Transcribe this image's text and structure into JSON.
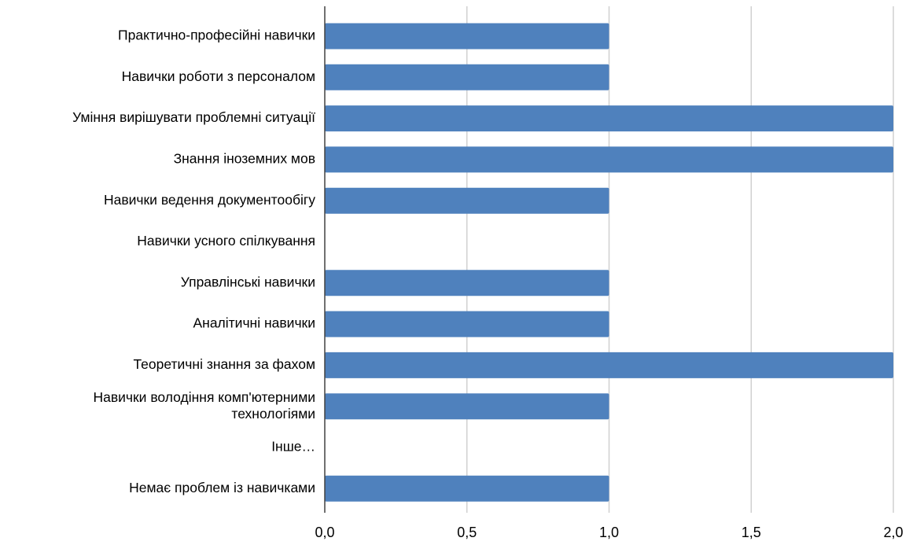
{
  "chart_data": {
    "type": "bar",
    "orientation": "horizontal",
    "categories": [
      [
        "Практично-професійні навички"
      ],
      [
        "Навички роботи з персоналом"
      ],
      [
        "Уміння вирішувати проблемні ситуації"
      ],
      [
        "Знання іноземних мов"
      ],
      [
        "Навички ведення документообігу"
      ],
      [
        "Навички усного спілкування"
      ],
      [
        "Управлінські навички"
      ],
      [
        "Аналітичні навички"
      ],
      [
        "Теоретичні знання за фахом"
      ],
      [
        "Навички володіння комп'ютерними",
        "технологіями"
      ],
      [
        "Інше…"
      ],
      [
        "Немає проблем із навичками"
      ]
    ],
    "values": [
      1,
      1,
      2,
      2,
      1,
      0,
      1,
      1,
      2,
      1,
      0,
      1
    ],
    "xlim": [
      0,
      2
    ],
    "xticks": [
      0,
      0.5,
      1,
      1.5,
      2
    ],
    "xtick_labels": [
      "0,0",
      "0,5",
      "1,0",
      "1,5",
      "2,0"
    ],
    "grid": "vertical",
    "legend": "none",
    "bar_color": "#4F81BD",
    "grid_color": "#D0D0D0",
    "axis_color": "#404040"
  }
}
